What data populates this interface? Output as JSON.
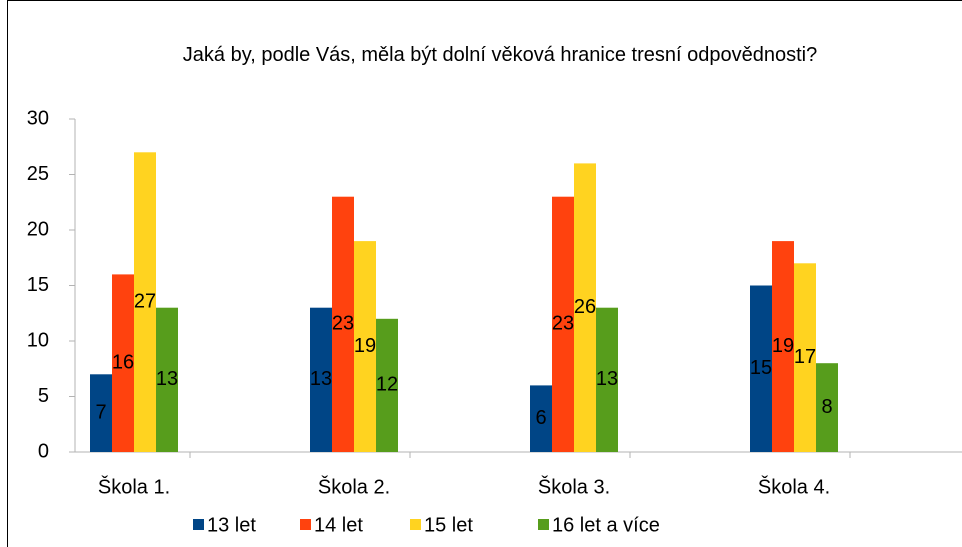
{
  "chart_data": {
    "type": "bar",
    "title": "Jaká by, podle Vás, měla být dolní věková hranice tresní odpovědnosti?",
    "categories": [
      "Škola 1.",
      "Škola 2.",
      "Škola 3.",
      "Škola 4."
    ],
    "series": [
      {
        "name": "13 let",
        "color": "#004586",
        "values": [
          7,
          13,
          6,
          15
        ]
      },
      {
        "name": "14 let",
        "color": "#ff420e",
        "values": [
          16,
          23,
          23,
          19
        ]
      },
      {
        "name": "15 let",
        "color": "#ffd320",
        "values": [
          27,
          19,
          26,
          17
        ]
      },
      {
        "name": "16 let a více",
        "color": "#579d1c",
        "values": [
          13,
          12,
          13,
          8
        ]
      }
    ],
    "ylim": [
      0,
      30
    ],
    "yticks": [
      0,
      5,
      10,
      15,
      20,
      25,
      30
    ],
    "grid": false,
    "legend": "bottom"
  }
}
